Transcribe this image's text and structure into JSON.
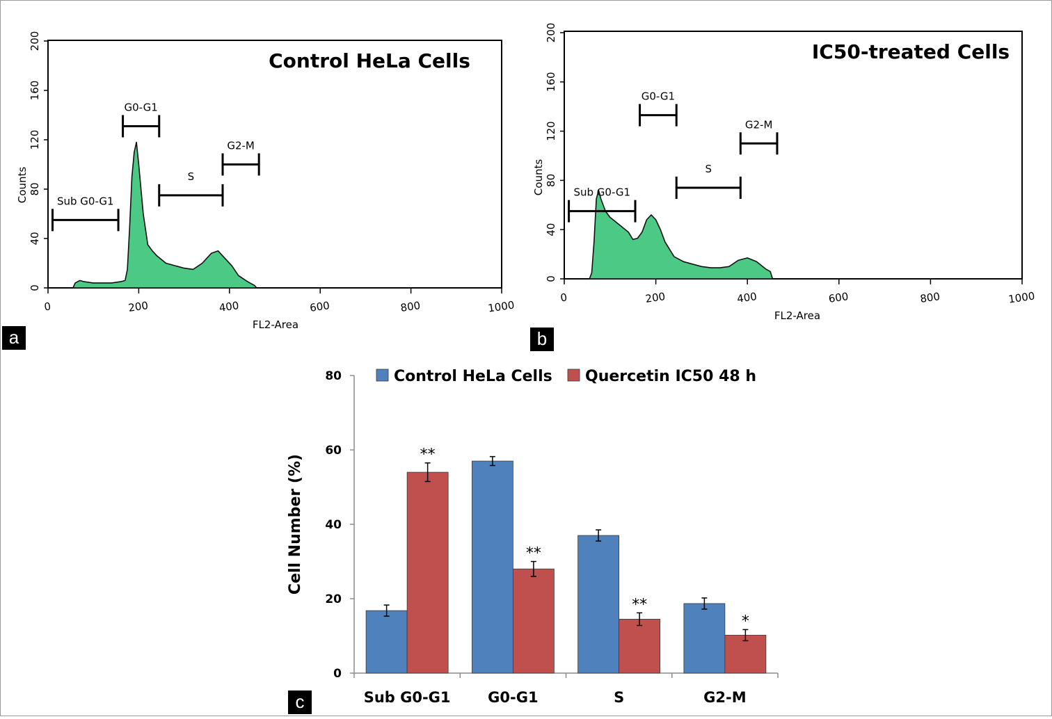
{
  "panels": {
    "a": "a",
    "b": "b",
    "c": "c"
  },
  "histogram_style": {
    "fill": "#4cc985",
    "stroke": "#111111"
  },
  "chart_data": [
    {
      "type": "area",
      "id": "histogram-a",
      "title": "Control HeLa Cells",
      "xlabel": "FL2-Area",
      "ylabel": "Counts",
      "xlim": [
        0,
        1000
      ],
      "ylim": [
        0,
        200
      ],
      "xticks": [
        "0",
        "200",
        "400",
        "600",
        "800",
        "1000"
      ],
      "yticks": [
        "0",
        "40",
        "80",
        "120",
        "160",
        "200"
      ],
      "x": [
        55,
        60,
        70,
        80,
        100,
        120,
        140,
        160,
        170,
        175,
        180,
        185,
        190,
        195,
        200,
        210,
        220,
        230,
        240,
        260,
        280,
        300,
        320,
        340,
        360,
        375,
        385,
        395,
        405,
        420,
        440,
        455,
        460
      ],
      "y": [
        0,
        4,
        6,
        5,
        4,
        4,
        4,
        5,
        6,
        15,
        50,
        90,
        110,
        118,
        100,
        60,
        35,
        30,
        26,
        20,
        18,
        16,
        15,
        20,
        28,
        30,
        26,
        22,
        18,
        10,
        5,
        2,
        0
      ],
      "gates": [
        {
          "label": "Sub G0-G1",
          "start": 10,
          "end": 155,
          "level": 55
        },
        {
          "label": "G0-G1",
          "start": 165,
          "end": 245,
          "level": 131
        },
        {
          "label": "S",
          "start": 245,
          "end": 385,
          "level": 75
        },
        {
          "label": "G2-M",
          "start": 385,
          "end": 465,
          "level": 100
        }
      ]
    },
    {
      "type": "area",
      "id": "histogram-b",
      "title": "IC50-treated Cells",
      "xlabel": "FL2-Area",
      "ylabel": "Counts",
      "xlim": [
        0,
        1000
      ],
      "ylim": [
        0,
        200
      ],
      "xticks": [
        "0",
        "200",
        "400",
        "600",
        "800",
        "1000"
      ],
      "yticks": [
        "0",
        "40",
        "80",
        "120",
        "160",
        "200"
      ],
      "x": [
        55,
        60,
        65,
        70,
        75,
        80,
        90,
        100,
        120,
        140,
        150,
        160,
        170,
        180,
        190,
        200,
        210,
        220,
        240,
        260,
        280,
        300,
        320,
        340,
        360,
        380,
        400,
        420,
        440,
        450,
        455
      ],
      "y": [
        0,
        5,
        30,
        65,
        72,
        65,
        55,
        50,
        44,
        38,
        32,
        33,
        38,
        48,
        52,
        48,
        40,
        30,
        18,
        14,
        12,
        10,
        9,
        9,
        10,
        15,
        17,
        14,
        8,
        6,
        0
      ],
      "gates": [
        {
          "label": "Sub G0-G1",
          "start": 10,
          "end": 155,
          "level": 55
        },
        {
          "label": "G0-G1",
          "start": 165,
          "end": 245,
          "level": 133
        },
        {
          "label": "S",
          "start": 245,
          "end": 385,
          "level": 74
        },
        {
          "label": "G2-M",
          "start": 385,
          "end": 465,
          "level": 110
        }
      ]
    },
    {
      "type": "bar",
      "id": "bar-chart-c",
      "ylabel": "Cell Number (%)",
      "ylim": [
        0,
        80
      ],
      "yticks": [
        "0",
        "20",
        "40",
        "60",
        "80"
      ],
      "categories": [
        "Sub G0-G1",
        "G0-G1",
        "S",
        "G2-M"
      ],
      "series": [
        {
          "name": "Control HeLa Cells",
          "color": "#4f81bd",
          "values": [
            16.8,
            57.0,
            37.0,
            18.7
          ],
          "errors": [
            1.5,
            1.2,
            1.5,
            1.5
          ],
          "significance": [
            "",
            "",
            "",
            ""
          ]
        },
        {
          "name": "Quercetin IC50 48 h",
          "color": "#c0504d",
          "values": [
            54.0,
            28.0,
            14.5,
            10.2
          ],
          "errors": [
            2.5,
            2.0,
            1.7,
            1.5
          ],
          "significance": [
            "**",
            "**",
            "**",
            "*"
          ]
        }
      ]
    }
  ]
}
